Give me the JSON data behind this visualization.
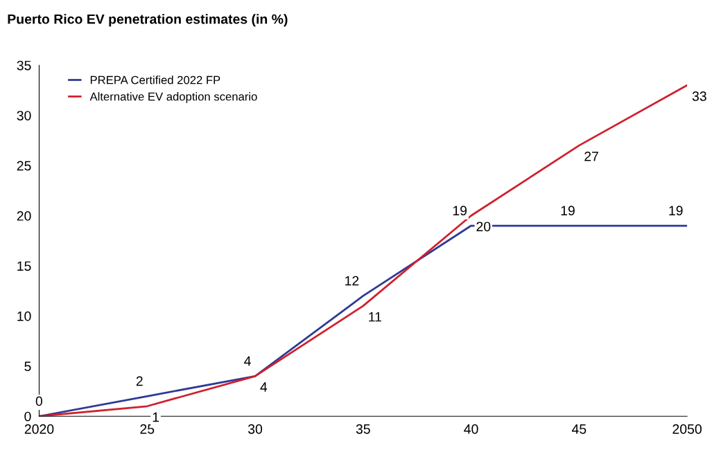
{
  "chart_data": {
    "type": "line",
    "title": "Puerto Rico EV penetration estimates (in %)",
    "x": [
      2020,
      2025,
      2030,
      2035,
      2040,
      2045,
      2050
    ],
    "series": [
      {
        "name": "PREPA Certified 2022 FP",
        "color": "#2e3a94",
        "values": [
          0,
          2,
          4,
          12,
          19,
          19,
          19
        ],
        "value_labels": [
          "0",
          "2",
          "4",
          "12",
          "19",
          "19",
          "19"
        ]
      },
      {
        "name": "Alternative EV adoption scenario",
        "color": "#d0202e",
        "values": [
          0,
          1,
          4,
          11,
          20,
          27,
          33
        ],
        "value_labels": [
          null,
          "1",
          "4",
          "11",
          "20",
          "27",
          "33"
        ]
      }
    ],
    "xlim": [
      2020,
      2050
    ],
    "xticks": [
      {
        "value": 2020,
        "label": "2020"
      },
      {
        "value": 2025,
        "label": "25"
      },
      {
        "value": 2030,
        "label": "30"
      },
      {
        "value": 2035,
        "label": "35"
      },
      {
        "value": 2040,
        "label": "40"
      },
      {
        "value": 2045,
        "label": "45"
      },
      {
        "value": 2050,
        "label": "2050"
      }
    ],
    "ylim": [
      0,
      35
    ],
    "yticks": [
      0,
      5,
      10,
      15,
      20,
      25,
      30,
      35
    ],
    "grid": false,
    "legend": "top left",
    "marker": "none",
    "line_style": "solid"
  }
}
